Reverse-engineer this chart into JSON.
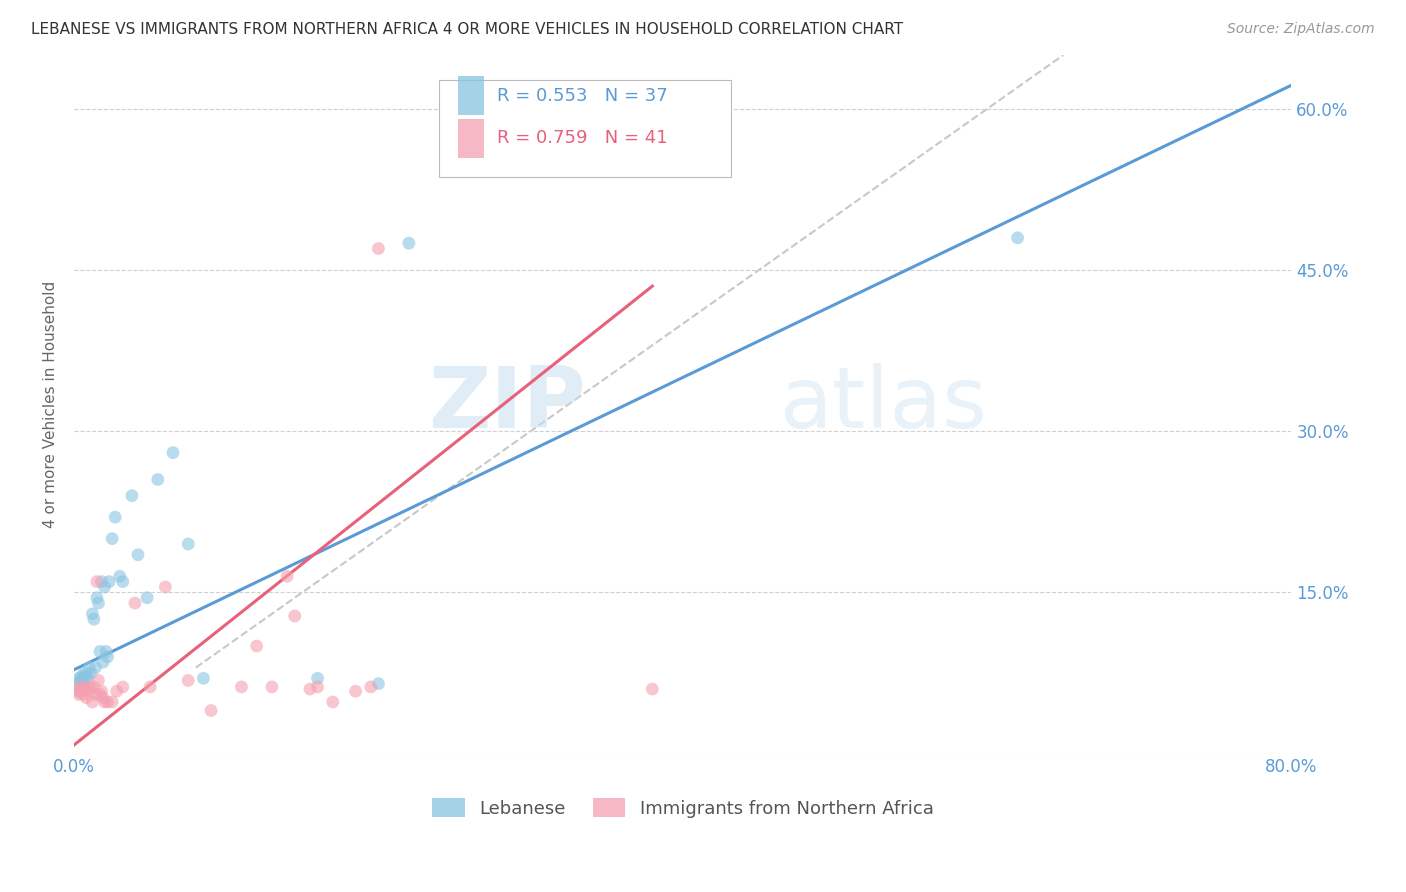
{
  "title": "LEBANESE VS IMMIGRANTS FROM NORTHERN AFRICA 4 OR MORE VEHICLES IN HOUSEHOLD CORRELATION CHART",
  "source": "Source: ZipAtlas.com",
  "ylabel": "4 or more Vehicles in Household",
  "watermark_zip": "ZIP",
  "watermark_atlas": "atlas",
  "xlim": [
    0.0,
    0.8
  ],
  "ylim": [
    0.0,
    0.65
  ],
  "xticks": [
    0.0,
    0.1,
    0.2,
    0.3,
    0.4,
    0.5,
    0.6,
    0.7,
    0.8
  ],
  "xticklabels": [
    "0.0%",
    "",
    "",
    "",
    "",
    "",
    "",
    "",
    "80.0%"
  ],
  "yticks": [
    0.0,
    0.15,
    0.3,
    0.45,
    0.6
  ],
  "yticklabels_right": [
    "",
    "15.0%",
    "30.0%",
    "45.0%",
    "60.0%"
  ],
  "legend1_r": "0.553",
  "legend1_n": "37",
  "legend2_r": "0.759",
  "legend2_n": "41",
  "blue_color": "#89c4e1",
  "pink_color": "#f4a0b0",
  "blue_line_color": "#5b9bd5",
  "pink_line_color": "#e8607a",
  "diag_color": "#c8c8c8",
  "scatter_alpha": 0.6,
  "scatter_size": 85,
  "blue_x": [
    0.002,
    0.003,
    0.004,
    0.005,
    0.006,
    0.007,
    0.008,
    0.009,
    0.01,
    0.011,
    0.012,
    0.013,
    0.014,
    0.015,
    0.016,
    0.017,
    0.018,
    0.019,
    0.02,
    0.021,
    0.022,
    0.023,
    0.025,
    0.027,
    0.03,
    0.032,
    0.038,
    0.042,
    0.048,
    0.055,
    0.065,
    0.075,
    0.085,
    0.16,
    0.2,
    0.22,
    0.62
  ],
  "blue_y": [
    0.065,
    0.07,
    0.068,
    0.072,
    0.068,
    0.075,
    0.072,
    0.07,
    0.08,
    0.075,
    0.13,
    0.125,
    0.08,
    0.145,
    0.14,
    0.095,
    0.16,
    0.085,
    0.155,
    0.095,
    0.09,
    0.16,
    0.2,
    0.22,
    0.165,
    0.16,
    0.24,
    0.185,
    0.145,
    0.255,
    0.28,
    0.195,
    0.07,
    0.07,
    0.065,
    0.475,
    0.48
  ],
  "pink_x": [
    0.001,
    0.002,
    0.003,
    0.004,
    0.005,
    0.006,
    0.007,
    0.008,
    0.009,
    0.01,
    0.011,
    0.012,
    0.013,
    0.014,
    0.015,
    0.016,
    0.017,
    0.018,
    0.019,
    0.02,
    0.022,
    0.025,
    0.028,
    0.032,
    0.04,
    0.05,
    0.06,
    0.075,
    0.09,
    0.11,
    0.12,
    0.13,
    0.14,
    0.145,
    0.155,
    0.16,
    0.17,
    0.185,
    0.195,
    0.2,
    0.38
  ],
  "pink_y": [
    0.06,
    0.058,
    0.055,
    0.058,
    0.062,
    0.055,
    0.06,
    0.052,
    0.058,
    0.062,
    0.06,
    0.048,
    0.062,
    0.055,
    0.16,
    0.068,
    0.055,
    0.058,
    0.052,
    0.048,
    0.048,
    0.048,
    0.058,
    0.062,
    0.14,
    0.062,
    0.155,
    0.068,
    0.04,
    0.062,
    0.1,
    0.062,
    0.165,
    0.128,
    0.06,
    0.062,
    0.048,
    0.058,
    0.062,
    0.47,
    0.06
  ],
  "blue_line_x": [
    0.0,
    0.8
  ],
  "blue_line_y": [
    0.078,
    0.622
  ],
  "pink_line_x": [
    0.0,
    0.38
  ],
  "pink_line_y": [
    0.008,
    0.435
  ],
  "diag_line_x": [
    0.08,
    0.65
  ],
  "diag_line_y": [
    0.08,
    0.65
  ]
}
